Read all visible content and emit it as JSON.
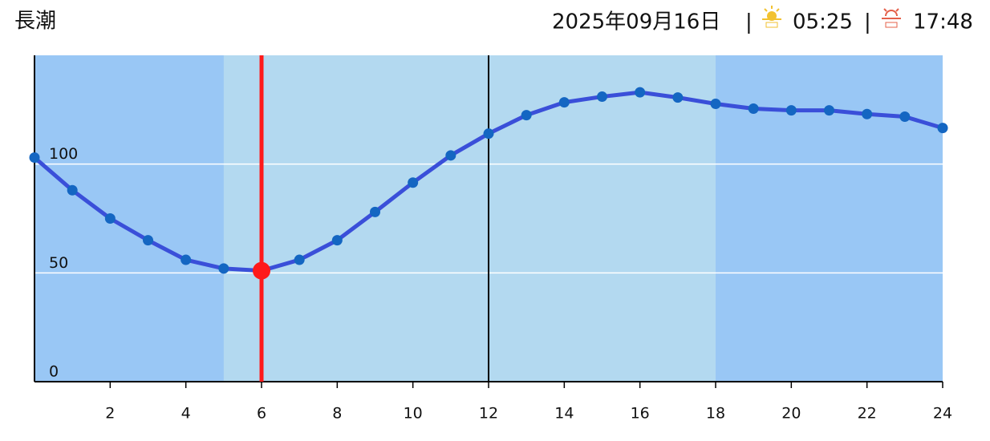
{
  "chart_data": {
    "type": "line",
    "title": "長潮",
    "x": [
      0,
      1,
      2,
      3,
      4,
      5,
      6,
      7,
      8,
      9,
      10,
      11,
      12,
      13,
      14,
      15,
      16,
      17,
      18,
      19,
      20,
      21,
      22,
      23,
      24
    ],
    "series": [
      {
        "color": "#3a4fd9",
        "marker_color": "#1466c2",
        "values": [
          103,
          88,
          75,
          65,
          56,
          52,
          51,
          56,
          65,
          78,
          91.5,
          104,
          114,
          122.5,
          128.4,
          131,
          133,
          130.6,
          127.7,
          125.5,
          124.7,
          124.7,
          123,
          121.8,
          116.6
        ]
      }
    ],
    "current_x": 6,
    "current_color": "#ff1a1a",
    "divider_x": 12,
    "night_ranges": [
      [
        0,
        5
      ],
      [
        18,
        24
      ]
    ],
    "night_color": "#99c7f5",
    "day_color": "#b3d9f0",
    "xlim": [
      0,
      24
    ],
    "xticks": [
      2,
      4,
      6,
      8,
      10,
      12,
      14,
      16,
      18,
      20,
      22,
      24
    ],
    "ylim": [
      0,
      150
    ],
    "yticks": [
      0,
      50,
      100
    ],
    "grid": true
  },
  "header": {
    "date": "2025年09月16日",
    "separator": "|",
    "sunrise": "05:25",
    "sunset": "17:48"
  }
}
